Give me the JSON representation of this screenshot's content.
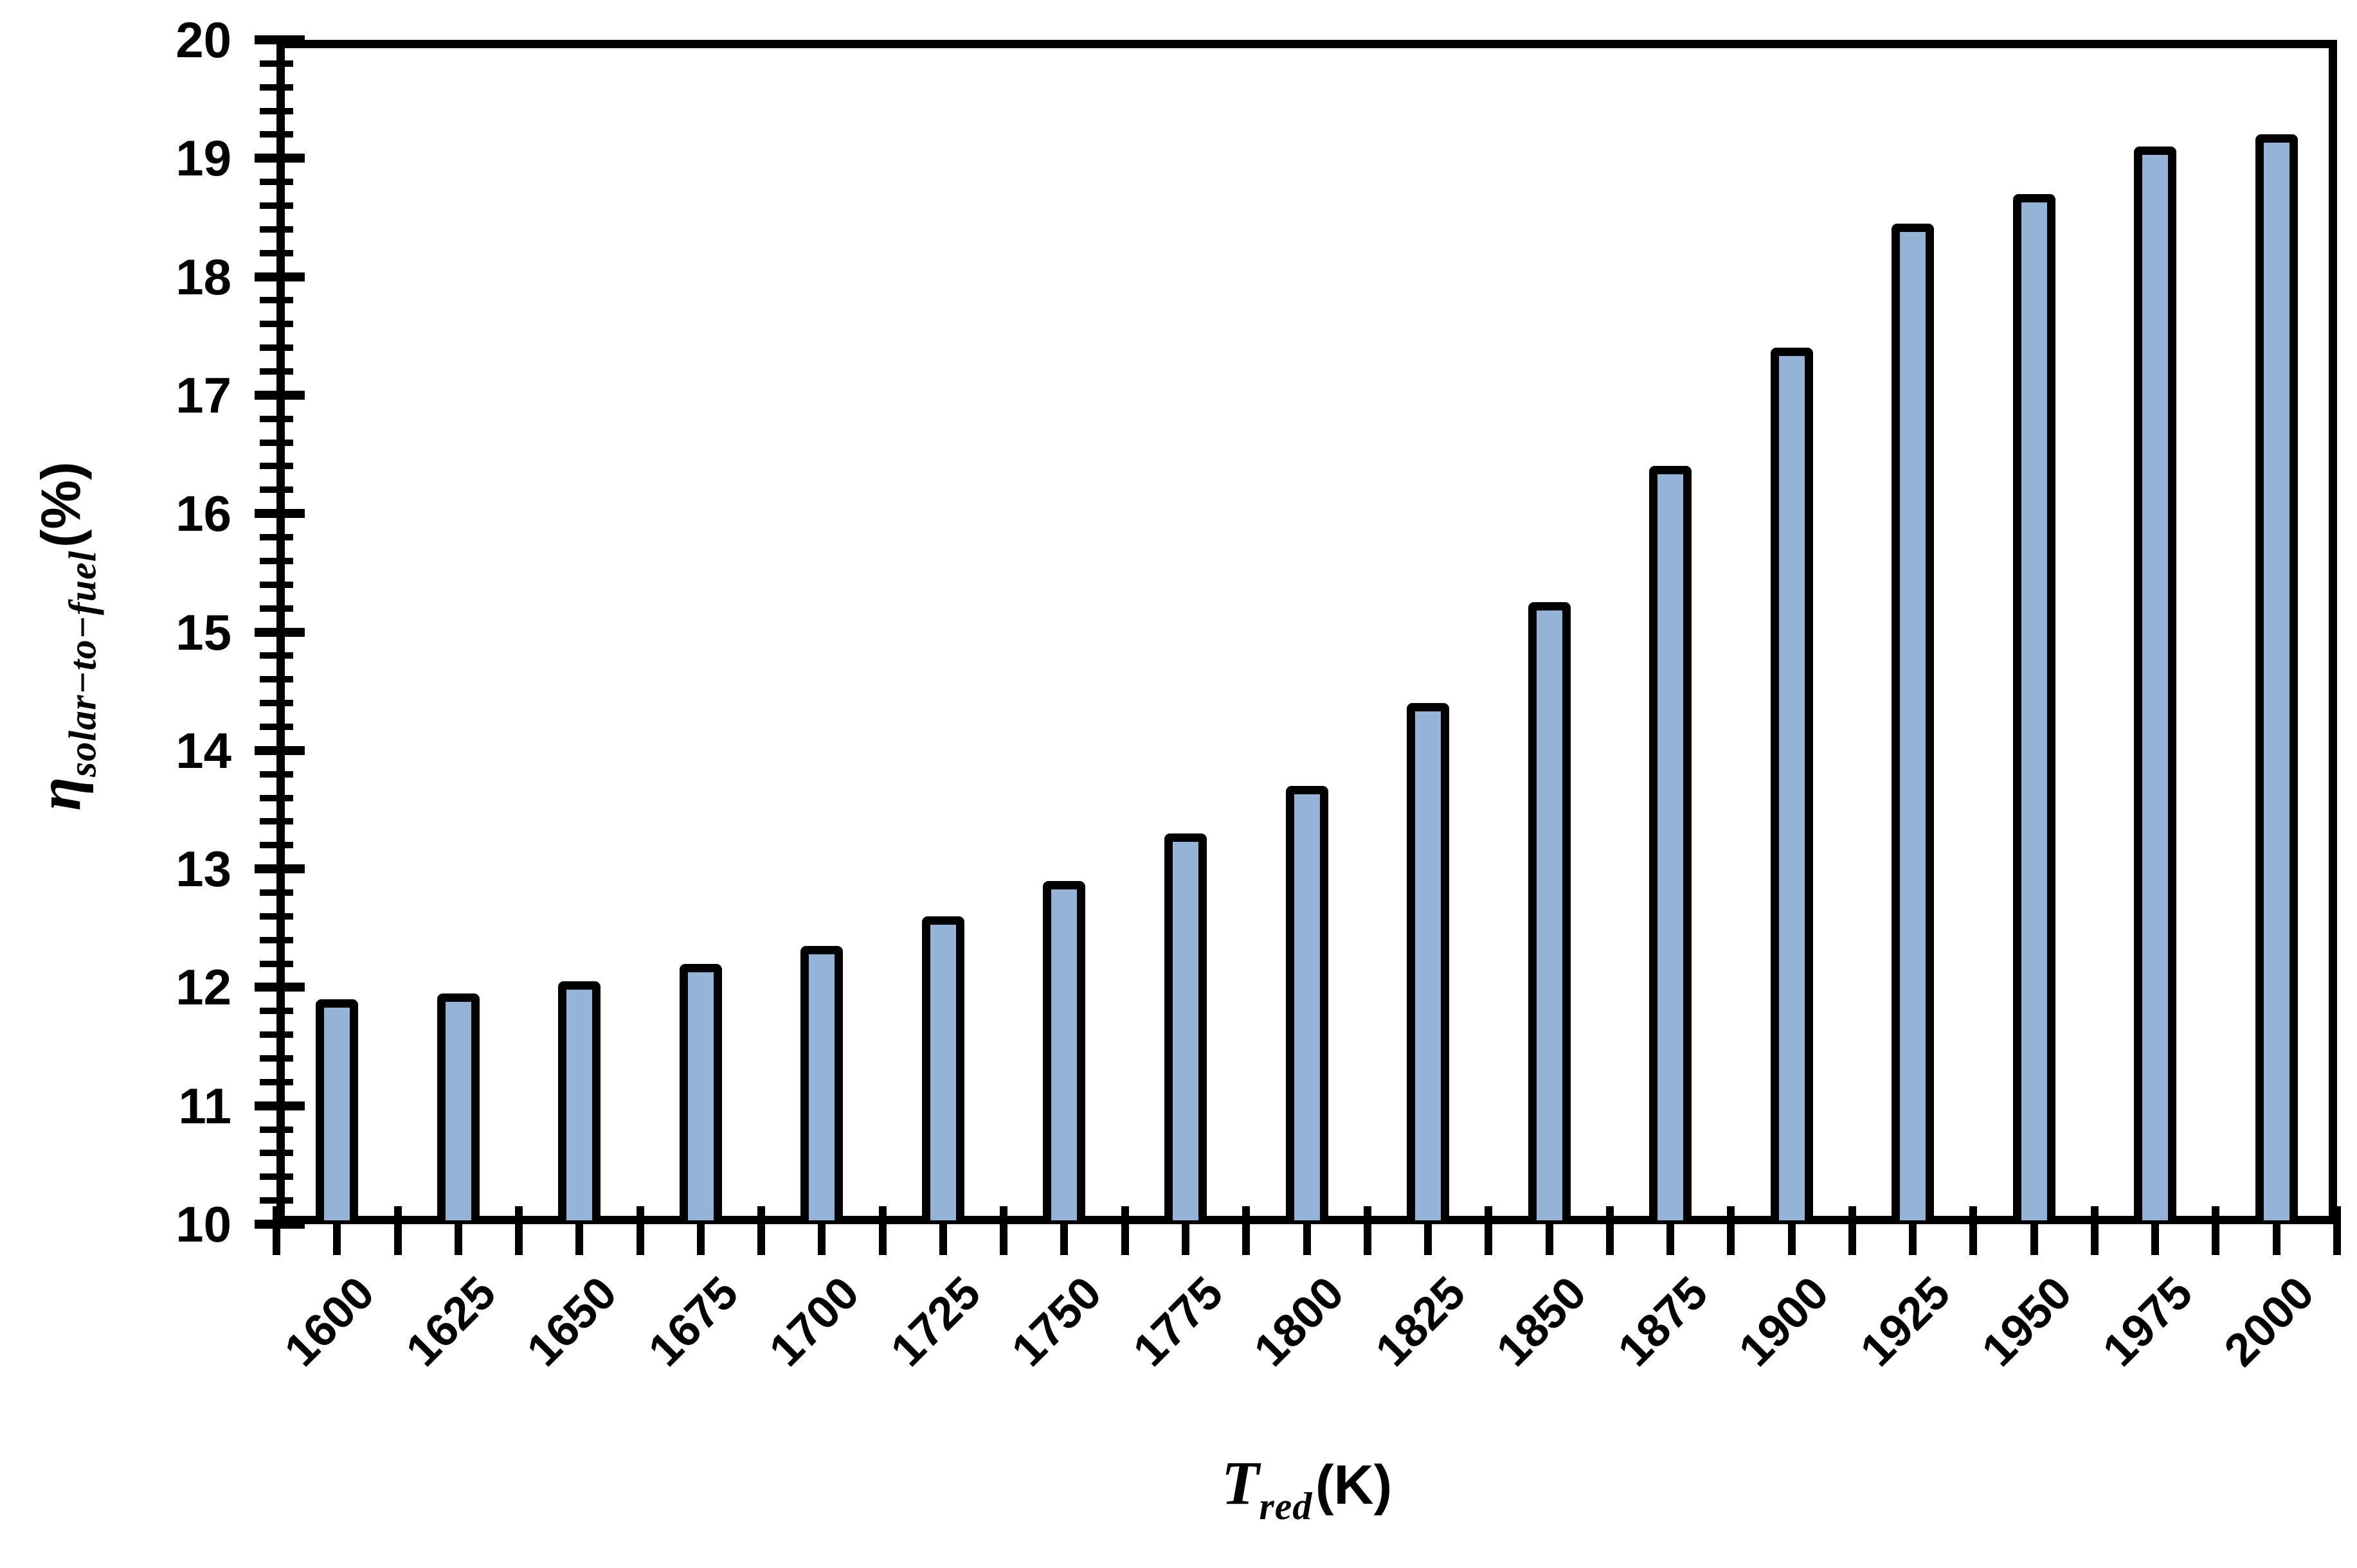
{
  "chart_data": {
    "type": "bar",
    "title": "",
    "categories": [
      "1600",
      "1625",
      "1650",
      "1675",
      "1700",
      "1725",
      "1750",
      "1775",
      "1800",
      "1825",
      "1850",
      "1875",
      "1900",
      "1925",
      "1950",
      "1975",
      "2000"
    ],
    "values": [
      11.9,
      11.95,
      12.05,
      12.2,
      12.35,
      12.6,
      12.9,
      13.3,
      13.7,
      14.4,
      15.25,
      16.4,
      17.4,
      18.45,
      18.7,
      19.1,
      19.2
    ],
    "xlabel": {
      "symbol": "T",
      "subscript": "red",
      "unit": "(K)"
    },
    "ylabel": {
      "symbol": "η",
      "subscript": "solar−to−fuel",
      "unit": "(%)"
    },
    "ylim": [
      10,
      20
    ],
    "y_major_step": 1,
    "y_minor_step": 0.2,
    "y_tick_labels": [
      "10",
      "11",
      "12",
      "13",
      "14",
      "15",
      "16",
      "17",
      "18",
      "19",
      "20"
    ],
    "x_tick_style": "crossing, at category boundaries and midpoints",
    "bar_fill_color": "#95b3d7",
    "bar_border_color": "#000000",
    "axis_color": "#000000",
    "grid": false,
    "legend": null
  }
}
